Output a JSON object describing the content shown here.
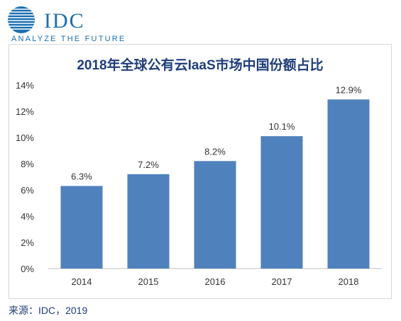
{
  "logo": {
    "brand": "IDC",
    "tagline": "ANALYZE THE FUTURE",
    "icon": "idc-globe-icon"
  },
  "source": "来源：IDC，2019",
  "colors": {
    "bar": "#4f81bd",
    "text": "#1f3d7a",
    "axis": "#333333",
    "brand": "#1a6eb0"
  },
  "chart_data": {
    "type": "bar",
    "title": "2018年全球公有云IaaS市场中国份额占比",
    "xlabel": "",
    "ylabel": "",
    "categories": [
      "2014",
      "2015",
      "2016",
      "2017",
      "2018"
    ],
    "values": [
      6.3,
      7.2,
      8.2,
      10.1,
      12.9
    ],
    "value_labels": [
      "6.3%",
      "7.2%",
      "8.2%",
      "10.1%",
      "12.9%"
    ],
    "ylim": [
      0,
      14
    ],
    "yticks": [
      0,
      2,
      4,
      6,
      8,
      10,
      12,
      14
    ],
    "ytick_labels": [
      "0%",
      "2%",
      "4%",
      "6%",
      "8%",
      "10%",
      "12%",
      "14%"
    ],
    "grid": false,
    "legend": "none"
  }
}
